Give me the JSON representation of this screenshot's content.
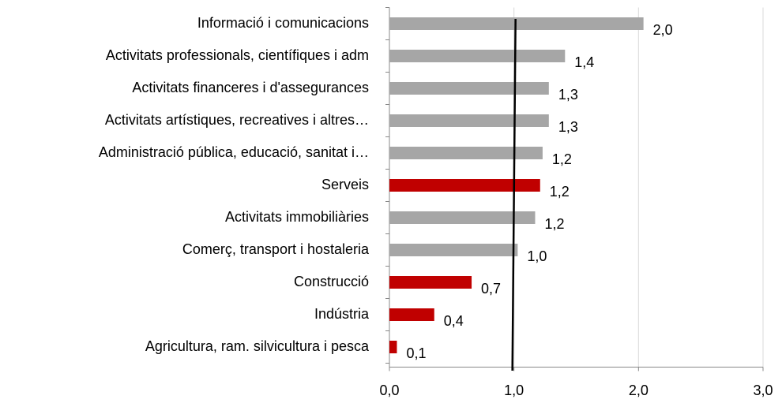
{
  "chart_data": {
    "type": "hbar",
    "categories": [
      "Informació i comunicacions",
      "Activitats professionals, científiques i adm",
      "Activitats financeres i d'assegurances",
      "Activitats artístiques, recreatives i altres…",
      "Administració pública, educació, sanitat i…",
      "Serveis",
      "Activitats immobiliàries",
      "Comerç, transport i hostaleria",
      "Construcció",
      "Indústria",
      "Agricultura, ram. silvicultura i pesca"
    ],
    "values": [
      2.04,
      1.41,
      1.28,
      1.28,
      1.23,
      1.21,
      1.17,
      1.03,
      0.66,
      0.36,
      0.06
    ],
    "value_labels": [
      "2,0",
      "1,4",
      "1,3",
      "1,3",
      "1,2",
      "1,2",
      "1,2",
      "1,0",
      "0,7",
      "0,4",
      "0,1"
    ],
    "colors": [
      "#a6a6a6",
      "#a6a6a6",
      "#a6a6a6",
      "#a6a6a6",
      "#a6a6a6",
      "#c00000",
      "#a6a6a6",
      "#a6a6a6",
      "#c00000",
      "#c00000",
      "#c00000"
    ],
    "xlim": [
      0,
      3
    ],
    "xticks": [
      {
        "value": 0,
        "label": "0,0"
      },
      {
        "value": 1,
        "label": "1,0"
      },
      {
        "value": 2,
        "label": "2,0"
      },
      {
        "value": 3,
        "label": "3,0"
      }
    ],
    "grid": true,
    "reference_line": 1
  }
}
